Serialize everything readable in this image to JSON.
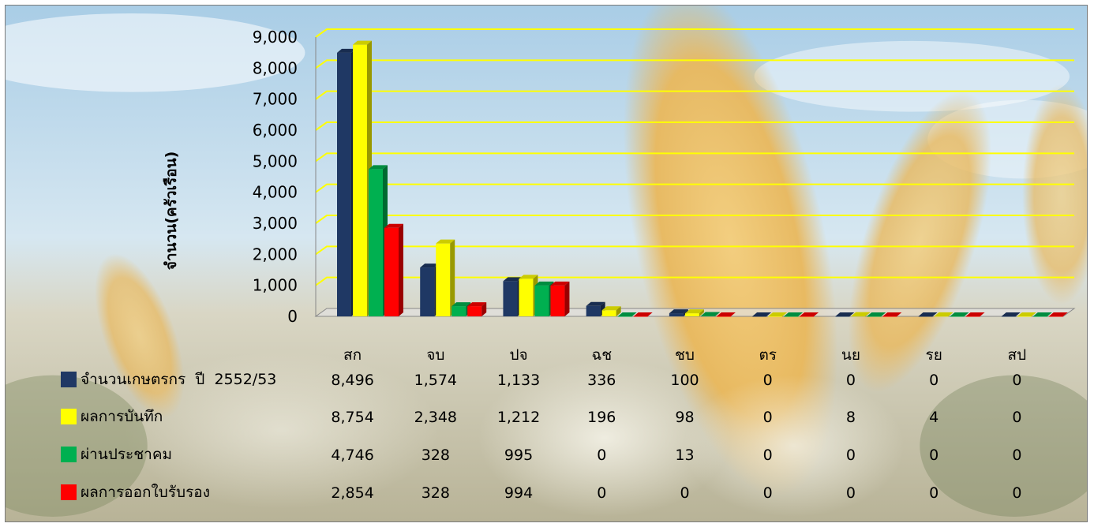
{
  "chart_data": {
    "type": "bar",
    "title": "",
    "xlabel": "",
    "ylabel": "จำนวน(ครัวเรือน)",
    "ylim": [
      0,
      9000
    ],
    "yticks": [
      "0",
      "1,000",
      "2,000",
      "3,000",
      "4,000",
      "5,000",
      "6,000",
      "7,000",
      "8,000",
      "9,000"
    ],
    "ytick_values": [
      0,
      1000,
      2000,
      3000,
      4000,
      5000,
      6000,
      7000,
      8000,
      9000
    ],
    "categories": [
      "สก",
      "จบ",
      "ปจ",
      "ฉช",
      "ชบ",
      "ตร",
      "นย",
      "รย",
      "สป"
    ],
    "grid": true,
    "legend_placement": "bottom-left data table",
    "series": [
      {
        "name": "จำนวนเกษตรกร  ปี  2552/53",
        "color": "#1f3864",
        "values": [
          8496,
          1574,
          1133,
          336,
          100,
          0,
          0,
          0,
          0
        ],
        "labels": [
          "8,496",
          "1,574",
          "1,133",
          "336",
          "100",
          "0",
          "0",
          "0",
          "0"
        ]
      },
      {
        "name": "ผลการบันทึก",
        "color": "#ffff00",
        "values": [
          8754,
          2348,
          1212,
          196,
          98,
          0,
          8,
          4,
          0
        ],
        "labels": [
          "8,754",
          "2,348",
          "1,212",
          "196",
          "98",
          "0",
          "8",
          "4",
          "0"
        ]
      },
      {
        "name": "ผ่านประชาคม",
        "color": "#00b050",
        "values": [
          4746,
          328,
          995,
          0,
          13,
          0,
          0,
          0,
          0
        ],
        "labels": [
          "4,746",
          "328",
          "995",
          "0",
          "13",
          "0",
          "0",
          "0",
          "0"
        ]
      },
      {
        "name": "ผลการออกใบรับรอง",
        "color": "#ff0000",
        "values": [
          2854,
          328,
          994,
          0,
          0,
          0,
          0,
          0,
          0
        ],
        "labels": [
          "2,854",
          "328",
          "994",
          "0",
          "0",
          "0",
          "0",
          "0",
          "0"
        ]
      }
    ]
  }
}
